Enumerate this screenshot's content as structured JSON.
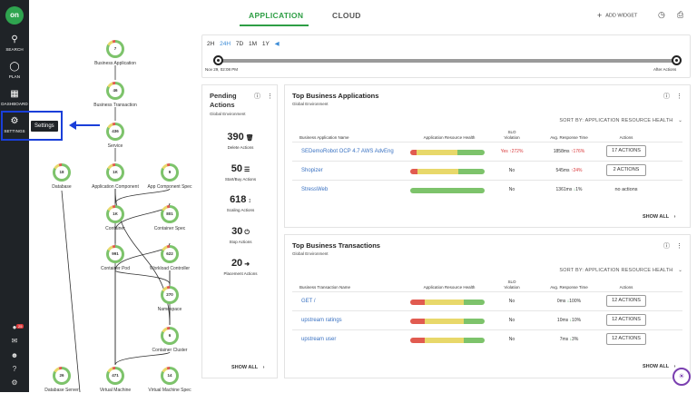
{
  "sidebar": {
    "logo": "on",
    "items": [
      {
        "label": "SEARCH",
        "icon": "search-icon"
      },
      {
        "label": "PLAN",
        "icon": "lightbulb-icon"
      },
      {
        "label": "DASHBOARD",
        "icon": "dashboard-icon"
      },
      {
        "label": "SETTINGS",
        "icon": "gear-icon"
      }
    ],
    "notification_count": "25",
    "tooltip": "Settings"
  },
  "header": {
    "tabs": [
      {
        "label": "APPLICATION",
        "active": true
      },
      {
        "label": "CLOUD",
        "active": false
      }
    ],
    "add_widget": "ADD WIDGET"
  },
  "timeline": {
    "options": [
      "2H",
      "24H",
      "7D",
      "1M",
      "1Y"
    ],
    "selected": "24H",
    "start_label": "Nov 29, 02:08 PM",
    "end_label": "After Actions"
  },
  "topology": {
    "nodes": [
      {
        "id": "ba",
        "value": "7",
        "label": "Business Application"
      },
      {
        "id": "bt",
        "value": "46",
        "label": "Business Transaction"
      },
      {
        "id": "svc",
        "value": "436",
        "label": "Service"
      },
      {
        "id": "db",
        "value": "18",
        "label": "Database"
      },
      {
        "id": "ac",
        "value": "1K",
        "label": "Application Component"
      },
      {
        "id": "acs",
        "value": "9",
        "label": "App Component Spec"
      },
      {
        "id": "ct",
        "value": "1K",
        "label": "Container"
      },
      {
        "id": "cs",
        "value": "801",
        "label": "Container Spec"
      },
      {
        "id": "cp",
        "value": "991",
        "label": "Container Pod"
      },
      {
        "id": "wc",
        "value": "622",
        "label": "Workload Controller"
      },
      {
        "id": "ns",
        "value": "270",
        "label": "Namespace"
      },
      {
        "id": "cc",
        "value": "6",
        "label": "Container Cluster"
      },
      {
        "id": "dbs",
        "value": "26",
        "label": "Database Server"
      },
      {
        "id": "vm",
        "value": "471",
        "label": "Virtual Machine"
      },
      {
        "id": "vms",
        "value": "14",
        "label": "Virtual Machine Spec"
      }
    ]
  },
  "pending": {
    "title_line1": "Pending",
    "title_line2": "Actions",
    "subtitle": "Global Environment",
    "actions": [
      {
        "count": "390",
        "glyph": "🗑",
        "label": "Delete Actions"
      },
      {
        "count": "50",
        "glyph": "☰",
        "label": "Start/Buy Actions"
      },
      {
        "count": "618",
        "glyph": "↕",
        "label": "Scaling Actions"
      },
      {
        "count": "30",
        "glyph": "⏻",
        "label": "Stop Actions"
      },
      {
        "count": "20",
        "glyph": "➜",
        "label": "Placement Actions"
      }
    ],
    "show_all": "SHOW ALL"
  },
  "top_apps": {
    "title": "Top Business Applications",
    "subtitle": "Global Environment",
    "sort": "SORT BY: APPLICATION RESOURCE HEALTH",
    "columns": {
      "name": "Business Application Name",
      "health": "Application Resource Health",
      "slo1": "SLO",
      "slo2": "Violation",
      "resp": "Avg. Response Time",
      "actions": "Actions"
    },
    "rows": [
      {
        "name": "SEDemoRobot OCP 4.7 AWS AdvEng",
        "health": [
          8,
          56,
          36
        ],
        "slo": "Yes",
        "slo_change": "272%",
        "slo_bad": true,
        "resp": "1858ms",
        "resp_change": "176%",
        "resp_dir": "up",
        "action": "17 ACTIONS"
      },
      {
        "name": "Shopizer",
        "health": [
          10,
          55,
          35
        ],
        "slo": "No",
        "slo_change": "",
        "slo_bad": false,
        "resp": "545ms",
        "resp_change": "24%",
        "resp_dir": "up",
        "action": "2 ACTIONS"
      },
      {
        "name": "StressWeb",
        "health": [
          0,
          0,
          100
        ],
        "slo": "No",
        "slo_change": "",
        "slo_bad": false,
        "resp": "1361ms",
        "resp_change": "1%",
        "resp_dir": "down",
        "action": "no actions"
      }
    ],
    "show_all": "SHOW ALL"
  },
  "top_tx": {
    "title": "Top Business Transactions",
    "subtitle": "Global Environment",
    "sort": "SORT BY: APPLICATION RESOURCE HEALTH",
    "columns": {
      "name": "Business Transaction Name",
      "health": "Application Resource Health",
      "slo1": "SLO",
      "slo2": "Violation",
      "resp": "Avg. Response Time",
      "actions": "Actions"
    },
    "rows": [
      {
        "name": "GET /",
        "health": [
          20,
          52,
          28
        ],
        "slo": "No",
        "resp": "0ms",
        "resp_change": "100%",
        "resp_dir": "down",
        "action": "12 ACTIONS"
      },
      {
        "name": "upstream ratings",
        "health": [
          20,
          52,
          28
        ],
        "slo": "No",
        "resp": "10ms",
        "resp_change": "10%",
        "resp_dir": "down",
        "action": "12 ACTIONS"
      },
      {
        "name": "upstream user",
        "health": [
          20,
          52,
          28
        ],
        "slo": "No",
        "resp": "7ms",
        "resp_change": "3%",
        "resp_dir": "down",
        "action": "12 ACTIONS"
      }
    ],
    "show_all": "SHOW ALL"
  },
  "colors": {
    "accent": "#2e9e45",
    "link": "#3a72c2",
    "health_red": "#e15b50",
    "health_yellow": "#e8d86a",
    "health_green": "#7dc36b",
    "highlight": "#1a3fd9"
  }
}
